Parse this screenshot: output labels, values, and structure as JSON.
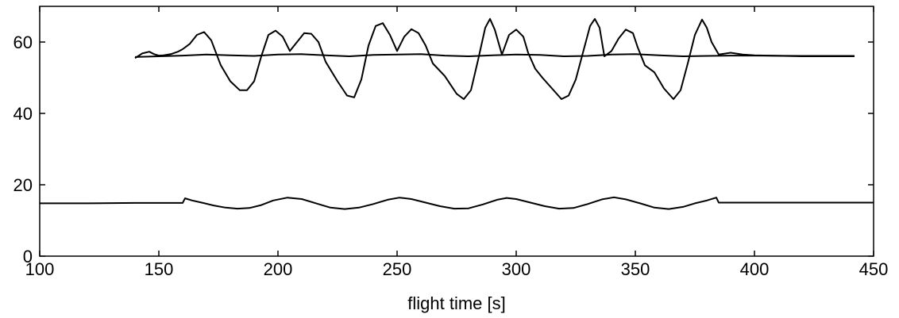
{
  "chart_data": {
    "type": "line",
    "title": "",
    "xlabel": "flight time [s]",
    "ylabel": "",
    "xlim": [
      100,
      450
    ],
    "ylim": [
      0,
      70
    ],
    "xticks": [
      100,
      150,
      200,
      250,
      300,
      350,
      400,
      450
    ],
    "xtick_labels": [
      "100",
      "150",
      "200",
      "250",
      "300",
      "350",
      "400",
      "450"
    ],
    "yticks": [
      0,
      20,
      40,
      60
    ],
    "ytick_labels": [
      "0",
      "20",
      "40",
      "60"
    ],
    "grid": false,
    "legend": "none",
    "line_color": "#000000",
    "series": [
      {
        "x": [
          140,
          143,
          146,
          148,
          150,
          152,
          155,
          158,
          160,
          163,
          166,
          169,
          172,
          176,
          180,
          184,
          187,
          190,
          193,
          196,
          199,
          202,
          205,
          208,
          211,
          214,
          217,
          220,
          225,
          229,
          232,
          235,
          238,
          241,
          244,
          247,
          250,
          253,
          256,
          259,
          262,
          265,
          270,
          275,
          278,
          281,
          284,
          287,
          289,
          291,
          294,
          297,
          300,
          303,
          305,
          308,
          311,
          315,
          319,
          322,
          325,
          328,
          331,
          333,
          335,
          337,
          340,
          343,
          346,
          349,
          351,
          354,
          358,
          362,
          366,
          369,
          372,
          375,
          378,
          380,
          382,
          385,
          390,
          395,
          400,
          420,
          442
        ],
        "y": [
          55.5,
          56.8,
          57.3,
          56.6,
          56.2,
          56.3,
          56.6,
          57.3,
          58.0,
          59.5,
          62.0,
          62.8,
          60.5,
          53.5,
          49.0,
          46.5,
          46.5,
          49.0,
          56.0,
          62.0,
          63.2,
          61.5,
          57.5,
          60.0,
          62.5,
          62.3,
          60.0,
          54.5,
          49.0,
          45.0,
          44.5,
          49.5,
          59.0,
          64.5,
          65.3,
          62.0,
          57.5,
          61.5,
          63.6,
          62.5,
          59.0,
          54.0,
          50.5,
          45.5,
          44.0,
          46.5,
          55.0,
          64.0,
          66.5,
          63.5,
          56.5,
          62.0,
          63.5,
          61.5,
          57.0,
          52.5,
          50.0,
          47.0,
          44.0,
          45.0,
          49.5,
          57.0,
          64.5,
          66.5,
          64.0,
          56.0,
          57.5,
          61.0,
          63.5,
          62.5,
          58.5,
          53.5,
          51.5,
          47.0,
          44.0,
          46.5,
          54.0,
          62.0,
          66.3,
          64.0,
          60.0,
          56.5,
          57.0,
          56.5,
          56.3,
          56.0,
          56.0
        ]
      },
      {
        "x": [
          140,
          150,
          160,
          170,
          180,
          190,
          200,
          210,
          220,
          230,
          240,
          250,
          260,
          270,
          280,
          290,
          300,
          310,
          320,
          330,
          340,
          350,
          360,
          370,
          380,
          390,
          400,
          420,
          442
        ],
        "y": [
          55.8,
          56.0,
          56.2,
          56.5,
          56.3,
          56.1,
          56.5,
          56.6,
          56.3,
          56.0,
          56.4,
          56.5,
          56.6,
          56.2,
          56.0,
          56.3,
          56.5,
          56.4,
          56.0,
          56.1,
          56.5,
          56.6,
          56.3,
          56.0,
          56.1,
          56.2,
          56.2,
          56.1,
          56.1
        ]
      },
      {
        "x": [
          100,
          120,
          140,
          160,
          161,
          162,
          164,
          168,
          173,
          178,
          183,
          188,
          193,
          198,
          204,
          210,
          216,
          222,
          228,
          234,
          240,
          246,
          251,
          256,
          262,
          268,
          274,
          280,
          286,
          292,
          296,
          300,
          306,
          312,
          318,
          324,
          330,
          336,
          341,
          346,
          352,
          358,
          364,
          370,
          375,
          380,
          383,
          384,
          385,
          400,
          450
        ],
        "y": [
          14.8,
          14.8,
          14.9,
          14.9,
          16.2,
          16.0,
          15.6,
          15.0,
          14.2,
          13.6,
          13.3,
          13.5,
          14.3,
          15.6,
          16.4,
          16.0,
          14.8,
          13.6,
          13.2,
          13.6,
          14.6,
          15.8,
          16.4,
          16.0,
          15.0,
          14.0,
          13.3,
          13.4,
          14.5,
          15.8,
          16.3,
          16.0,
          15.0,
          14.0,
          13.3,
          13.5,
          14.6,
          15.9,
          16.5,
          15.9,
          14.8,
          13.6,
          13.2,
          13.8,
          14.8,
          15.6,
          16.2,
          16.4,
          15.0,
          15.0,
          15.0
        ]
      }
    ]
  }
}
